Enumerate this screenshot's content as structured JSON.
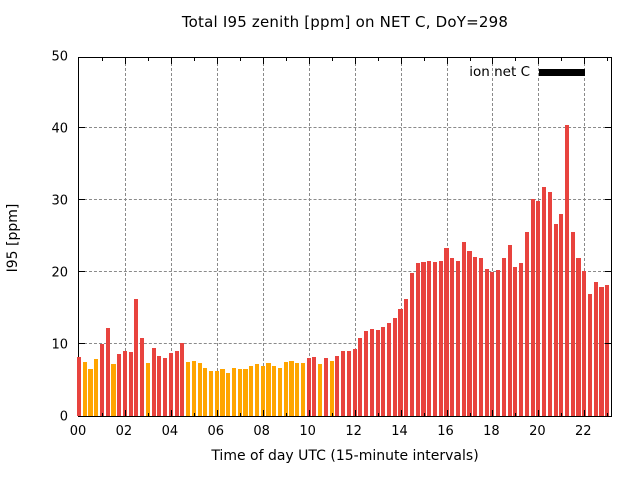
{
  "title": "Total I95 zenith [ppm] on NET C, DoY=298",
  "legend": {
    "label": "ion net C",
    "swatch_color": "#000000"
  },
  "chart_data": {
    "type": "bar",
    "title": "Total I95 zenith [ppm] on NET C, DoY=298",
    "xlabel": "Time of day UTC (15-minute intervals)",
    "ylabel": "I95 [ppm]",
    "ylim": [
      0,
      50
    ],
    "yticks": [
      0,
      10,
      20,
      30,
      40,
      50
    ],
    "xtick_labels": [
      "00",
      "02",
      "04",
      "06",
      "08",
      "10",
      "12",
      "14",
      "16",
      "18",
      "20",
      "22"
    ],
    "xtick_hours": [
      0,
      2,
      4,
      6,
      8,
      10,
      12,
      14,
      16,
      18,
      20,
      22
    ],
    "x_hours_span": 23.25,
    "bin_minutes": 15,
    "grid": true,
    "legend_position": "top-right",
    "palette": {
      "red": "#e8433e",
      "orange": "#ffa500"
    },
    "times": [
      "00:00",
      "00:15",
      "00:30",
      "00:45",
      "01:00",
      "01:15",
      "01:30",
      "01:45",
      "02:00",
      "02:15",
      "02:30",
      "02:45",
      "03:00",
      "03:15",
      "03:30",
      "03:45",
      "04:00",
      "04:15",
      "04:30",
      "04:45",
      "05:00",
      "05:15",
      "05:30",
      "05:45",
      "06:00",
      "06:15",
      "06:30",
      "06:45",
      "07:00",
      "07:15",
      "07:30",
      "07:45",
      "08:00",
      "08:15",
      "08:30",
      "08:45",
      "09:00",
      "09:15",
      "09:30",
      "09:45",
      "10:00",
      "10:15",
      "10:30",
      "10:45",
      "11:00",
      "11:15",
      "11:30",
      "11:45",
      "12:00",
      "12:15",
      "12:30",
      "12:45",
      "13:00",
      "13:15",
      "13:30",
      "13:45",
      "14:00",
      "14:15",
      "14:30",
      "14:45",
      "15:00",
      "15:15",
      "15:30",
      "15:45",
      "16:00",
      "16:15",
      "16:30",
      "16:45",
      "17:00",
      "17:15",
      "17:30",
      "17:45",
      "18:00",
      "18:15",
      "18:30",
      "18:45",
      "19:00",
      "19:15",
      "19:30",
      "19:45",
      "20:00",
      "20:15",
      "20:30",
      "20:45",
      "21:00",
      "21:15",
      "21:30",
      "21:45",
      "22:00",
      "22:15",
      "22:30",
      "22:45",
      "23:00"
    ],
    "values": [
      8.2,
      7.5,
      6.6,
      7.9,
      10.0,
      12.2,
      7.2,
      8.6,
      9.1,
      8.9,
      16.3,
      10.9,
      7.3,
      9.5,
      8.3,
      8.0,
      8.8,
      9.1,
      10.1,
      7.5,
      7.7,
      7.4,
      6.7,
      6.2,
      6.3,
      6.6,
      6.0,
      6.7,
      6.5,
      6.6,
      6.9,
      7.2,
      7.0,
      7.3,
      6.9,
      6.7,
      7.5,
      7.6,
      7.4,
      7.3,
      8.0,
      8.2,
      7.2,
      8.0,
      7.7,
      8.3,
      9.1,
      9.0,
      9.3,
      10.8,
      11.8,
      12.1,
      11.9,
      12.3,
      12.9,
      13.6,
      14.8,
      16.2,
      19.8,
      21.2,
      21.4,
      21.6,
      21.4,
      21.5,
      23.3,
      21.9,
      21.5,
      24.2,
      22.9,
      22.1,
      21.9,
      20.4,
      20.0,
      20.3,
      21.9,
      23.8,
      20.7,
      21.3,
      25.5,
      30.1,
      29.8,
      31.8,
      31.1,
      26.7,
      28.0,
      40.4,
      25.6,
      21.9,
      20.2,
      16.9,
      18.6,
      17.9,
      18.2
    ],
    "colors": [
      "red",
      "orange",
      "orange",
      "orange",
      "red",
      "red",
      "orange",
      "red",
      "red",
      "red",
      "red",
      "red",
      "orange",
      "red",
      "red",
      "red",
      "red",
      "red",
      "red",
      "orange",
      "orange",
      "orange",
      "orange",
      "orange",
      "orange",
      "orange",
      "orange",
      "orange",
      "orange",
      "orange",
      "orange",
      "orange",
      "orange",
      "orange",
      "orange",
      "orange",
      "orange",
      "orange",
      "orange",
      "orange",
      "red",
      "red",
      "orange",
      "red",
      "orange",
      "red",
      "red",
      "red",
      "red",
      "red",
      "red",
      "red",
      "red",
      "red",
      "red",
      "red",
      "red",
      "red",
      "red",
      "red",
      "red",
      "red",
      "red",
      "red",
      "red",
      "red",
      "red",
      "red",
      "red",
      "red",
      "red",
      "red",
      "red",
      "red",
      "red",
      "red",
      "red",
      "red",
      "red",
      "red",
      "red",
      "red",
      "red",
      "red",
      "red",
      "red",
      "red",
      "red",
      "red",
      "red",
      "red",
      "red",
      "red"
    ]
  }
}
